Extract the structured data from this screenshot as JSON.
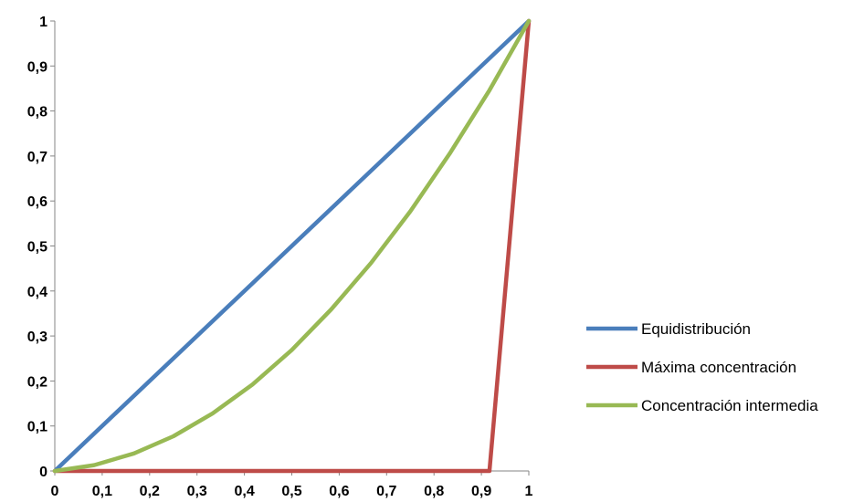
{
  "chart_data": {
    "type": "line",
    "title": "",
    "xlabel": "",
    "ylabel": "",
    "xlim": [
      0,
      1
    ],
    "ylim": [
      0,
      1
    ],
    "grid": false,
    "legend_position": "right",
    "x_tick_labels": [
      "0",
      "0,1",
      "0,2",
      "0,3",
      "0,4",
      "0,5",
      "0,6",
      "0,7",
      "0,8",
      "0,9",
      "1"
    ],
    "x_tick_values": [
      0,
      0.1,
      0.2,
      0.3,
      0.4,
      0.5,
      0.6,
      0.7,
      0.8,
      0.9,
      1
    ],
    "y_tick_labels": [
      "0",
      "0,1",
      "0,2",
      "0,3",
      "0,4",
      "0,5",
      "0,6",
      "0,7",
      "0,8",
      "0,9",
      "1"
    ],
    "y_tick_values": [
      0,
      0.1,
      0.2,
      0.3,
      0.4,
      0.5,
      0.6,
      0.7,
      0.8,
      0.9,
      1
    ],
    "series": [
      {
        "name": "Equidistribución",
        "color": "#4a7ebb",
        "x": [
          0,
          1
        ],
        "y": [
          0,
          1
        ]
      },
      {
        "name": "Máxima concentración",
        "color": "#be4b48",
        "x": [
          0,
          0.917,
          1
        ],
        "y": [
          0,
          0,
          1
        ]
      },
      {
        "name": "Concentración intermedia",
        "color": "#98b954",
        "x": [
          0,
          0.083,
          0.167,
          0.25,
          0.333,
          0.417,
          0.5,
          0.583,
          0.667,
          0.75,
          0.833,
          0.917,
          1
        ],
        "y": [
          0,
          0.013,
          0.039,
          0.077,
          0.128,
          0.192,
          0.269,
          0.359,
          0.462,
          0.577,
          0.705,
          0.846,
          1
        ]
      }
    ]
  }
}
